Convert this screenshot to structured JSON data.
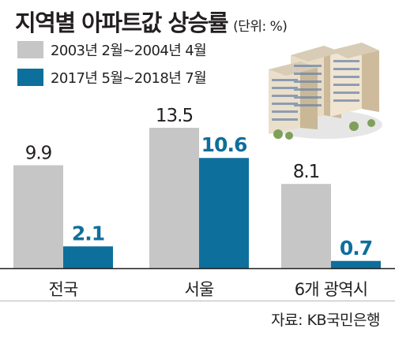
{
  "title": "지역별 아파트값 상승률",
  "unit": "(단위: %)",
  "source": "자료: KB국민은행",
  "colors": {
    "series1": "#c6c6c6",
    "series2": "#0d6f9c",
    "axis": "#231f20"
  },
  "chart_data": {
    "type": "bar",
    "categories": [
      "전국",
      "서울",
      "6개 광역시"
    ],
    "series": [
      {
        "name": "2003년 2월~2004년 4월",
        "values": [
          9.9,
          13.5,
          8.1
        ]
      },
      {
        "name": "2017년 5월~2018년 7월",
        "values": [
          2.1,
          10.6,
          0.7
        ]
      }
    ],
    "ylim": [
      0,
      13.5
    ],
    "grid": false,
    "legend": "top-left"
  }
}
